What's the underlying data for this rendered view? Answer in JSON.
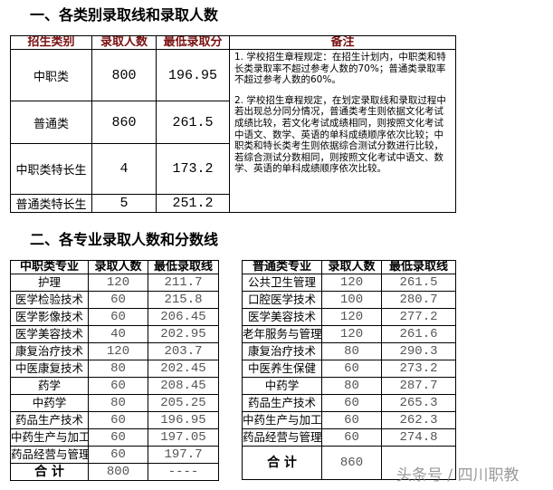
{
  "section1": {
    "title": "一、各类别录取线和录取人数",
    "headers": [
      "招生类别",
      "录取人数",
      "最低录取分",
      "备注"
    ],
    "rows": [
      {
        "category": "中职类",
        "count": "800",
        "min_score": "196.95"
      },
      {
        "category": "普通类",
        "count": "860",
        "min_score": "261.5"
      },
      {
        "category": "中职类特长生",
        "count": "4",
        "min_score": "173.2"
      },
      {
        "category": "普通类特长生",
        "count": "5",
        "min_score": "251.2"
      }
    ],
    "notes": [
      "1. 学校招生章程规定：在招生计划内，中职类和特长类录取率不超过参考人数的70%；普通类录取率不超过参考人数的60%。",
      "2. 学校招生章程规定，在划定录取线和录取过程中若出现总分同分情况，普通类考生则依据文化考试成绩比较，若文化考试成绩相同，则按照文化考试中语文、数学、英语的单科成绩顺序依次比较；中职类和特长类考生则依据综合测试分数进行比较，若综合测试分数相同，则按照文化考试中语文、数学、英语的单科成绩顺序依次比较。"
    ]
  },
  "section2": {
    "title": "二、各专业录取人数和分数线",
    "left": {
      "headers": [
        "中职类专业",
        "录取人数",
        "最低录取线"
      ],
      "rows": [
        [
          "护理",
          "120",
          "211.7"
        ],
        [
          "医学检验技术",
          "60",
          "215.8"
        ],
        [
          "医学影像技术",
          "60",
          "206.45"
        ],
        [
          "医学美容技术",
          "40",
          "202.95"
        ],
        [
          "康复治疗技术",
          "120",
          "203.7"
        ],
        [
          "中医康复技术",
          "80",
          "202.45"
        ],
        [
          "药学",
          "60",
          "208.45"
        ],
        [
          "中药学",
          "80",
          "205.25"
        ],
        [
          "药品生产技术",
          "60",
          "196.95"
        ],
        [
          "中药生产与加工",
          "60",
          "197.05"
        ],
        [
          "药品经营与管理",
          "60",
          "197.7"
        ]
      ],
      "total": [
        "合 计",
        "800",
        "----"
      ]
    },
    "right": {
      "headers": [
        "普通类专业",
        "录取人数",
        "最低录取线"
      ],
      "rows": [
        [
          "公共卫生管理",
          "120",
          "261.5"
        ],
        [
          "口腔医学技术",
          "100",
          "280.7"
        ],
        [
          "医学美容技术",
          "120",
          "277.2"
        ],
        [
          "老年服务与管理",
          "120",
          "261.6"
        ],
        [
          "康复治疗技术",
          "80",
          "290.3"
        ],
        [
          "中医养生保健",
          "60",
          "273.2"
        ],
        [
          "中药学",
          "80",
          "287.7"
        ],
        [
          "药品生产技术",
          "60",
          "265.3"
        ],
        [
          "中药生产与加工",
          "60",
          "262.3"
        ],
        [
          "药品经营与管理",
          "60",
          "274.8"
        ]
      ],
      "total": [
        "合 计",
        "860",
        ""
      ]
    }
  },
  "watermark": "头条号 / 四川职教"
}
